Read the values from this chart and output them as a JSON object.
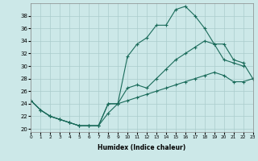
{
  "xlabel": "Humidex (Indice chaleur)",
  "background_color": "#cce8e8",
  "grid_color": "#aacccc",
  "line_color": "#1a6b5a",
  "line1_x": [
    0,
    1,
    2,
    3,
    4,
    5,
    6,
    7,
    8,
    9,
    10,
    11,
    12,
    13,
    14,
    15,
    16,
    17,
    18,
    19,
    20,
    21,
    22
  ],
  "line1_y": [
    24.5,
    23.0,
    22.0,
    21.5,
    21.0,
    20.5,
    20.5,
    20.5,
    22.5,
    24.0,
    31.5,
    33.5,
    34.5,
    36.5,
    36.5,
    39.0,
    39.5,
    38.0,
    36.0,
    33.5,
    31.0,
    30.5,
    30.0
  ],
  "line2_x": [
    0,
    1,
    2,
    3,
    4,
    5,
    6,
    7,
    8,
    9,
    10,
    11,
    12,
    13,
    14,
    15,
    16,
    17,
    18,
    19,
    20,
    21,
    22,
    23
  ],
  "line2_y": [
    24.5,
    23.0,
    22.0,
    21.5,
    21.0,
    20.5,
    20.5,
    20.5,
    24.0,
    24.0,
    26.5,
    27.0,
    26.5,
    28.0,
    29.5,
    31.0,
    32.0,
    33.0,
    34.0,
    33.5,
    33.5,
    31.0,
    30.5,
    28.0
  ],
  "line3_x": [
    0,
    1,
    2,
    3,
    4,
    5,
    6,
    7,
    8,
    9,
    10,
    11,
    12,
    13,
    14,
    15,
    16,
    17,
    18,
    19,
    20,
    21,
    22,
    23
  ],
  "line3_y": [
    24.5,
    23.0,
    22.0,
    21.5,
    21.0,
    20.5,
    20.5,
    20.5,
    24.0,
    24.0,
    24.5,
    25.0,
    25.5,
    26.0,
    26.5,
    27.0,
    27.5,
    28.0,
    28.5,
    29.0,
    28.5,
    27.5,
    27.5,
    28.0
  ],
  "xlim": [
    0,
    23
  ],
  "ylim": [
    19.5,
    40.0
  ],
  "yticks": [
    20,
    22,
    24,
    26,
    28,
    30,
    32,
    34,
    36,
    38
  ],
  "xticks": [
    0,
    1,
    2,
    3,
    4,
    5,
    6,
    7,
    8,
    9,
    10,
    11,
    12,
    13,
    14,
    15,
    16,
    17,
    18,
    19,
    20,
    21,
    22,
    23
  ]
}
